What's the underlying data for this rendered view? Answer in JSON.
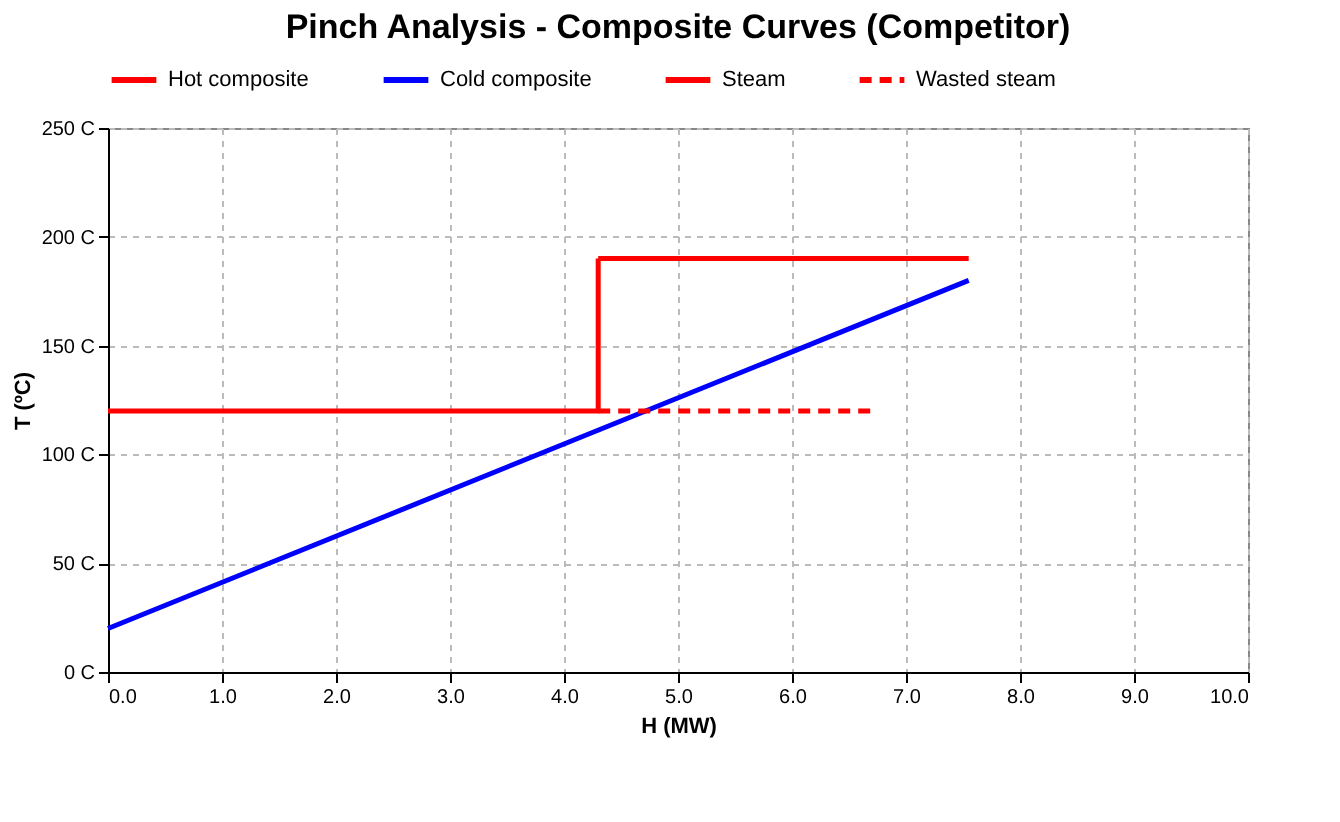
{
  "chart_data": {
    "type": "line",
    "title": "Pinch Analysis - Composite Curves (Competitor)",
    "xlabel": "H (MW)",
    "ylabel": "T (ºC)",
    "series": [
      {
        "name": "Hot composite",
        "color": "#ff0000",
        "x": [
          0,
          4.3,
          4.3
        ],
        "values": [
          120,
          120,
          190
        ]
      },
      {
        "name": "Cold composite",
        "color": "#0000ff",
        "x": [
          0,
          7.55
        ],
        "values": [
          20,
          180
        ]
      },
      {
        "name": "Steam",
        "color": "#ff0000",
        "x": [
          4.3,
          7.55
        ],
        "values": [
          190,
          190
        ]
      },
      {
        "name": "Wasted steam",
        "color": "#ff0000",
        "x": [
          4.3,
          6.7
        ],
        "values": [
          120,
          120
        ],
        "line_style": "dashed"
      }
    ],
    "xlim": [
      0,
      10
    ],
    "xticks": [
      {
        "value": 0,
        "label": "0.0"
      },
      {
        "value": 1,
        "label": "1.0"
      },
      {
        "value": 2,
        "label": "2.0"
      },
      {
        "value": 3,
        "label": "3.0"
      },
      {
        "value": 4,
        "label": "4.0"
      },
      {
        "value": 5,
        "label": "5.0"
      },
      {
        "value": 6,
        "label": "6.0"
      },
      {
        "value": 7,
        "label": "7.0"
      },
      {
        "value": 8,
        "label": "8.0"
      },
      {
        "value": 9,
        "label": "9.0"
      },
      {
        "value": 10,
        "label": "10.0"
      }
    ],
    "ylim": [
      0,
      250
    ],
    "yticks": [
      {
        "value": 0,
        "label": "0 C"
      },
      {
        "value": 50,
        "label": "50 C"
      },
      {
        "value": 100,
        "label": "100 C"
      },
      {
        "value": 150,
        "label": "150 C"
      },
      {
        "value": 200,
        "label": "200 C"
      },
      {
        "value": 250,
        "label": "250 C"
      }
    ],
    "grid": true,
    "legend": "top",
    "marker": "none",
    "line_style": "solid"
  }
}
